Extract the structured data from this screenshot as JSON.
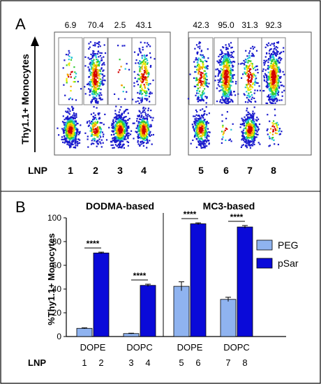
{
  "panels": {
    "a_label": "A",
    "b_label": "B"
  },
  "panel_a": {
    "y_label": "Thy1.1+ Monocytes",
    "lnp_prefix": "LNP",
    "samples": [
      {
        "lnp": "1",
        "pct": "6.9"
      },
      {
        "lnp": "2",
        "pct": "70.4"
      },
      {
        "lnp": "3",
        "pct": "2.5"
      },
      {
        "lnp": "4",
        "pct": "43.1"
      },
      {
        "lnp": "5",
        "pct": "42.3"
      },
      {
        "lnp": "6",
        "pct": "95.0"
      },
      {
        "lnp": "7",
        "pct": "31.3"
      },
      {
        "lnp": "8",
        "pct": "92.3"
      }
    ],
    "colors": {
      "high": "#d40000",
      "mid1": "#f2a000",
      "mid2": "#e8e800",
      "mid3": "#33cc33",
      "mid4": "#22c4d8",
      "low": "#1a1acc",
      "edge": "#1100aa"
    }
  },
  "chart_data": {
    "type": "bar",
    "group_titles": [
      "DODMA-based",
      "MC3-based"
    ],
    "ylabel": "%Thy1.1+ Monocytes",
    "ylim": [
      0,
      100
    ],
    "yticks": [
      0,
      20,
      40,
      60,
      80,
      100
    ],
    "categories": [
      "DOPE",
      "DOPC",
      "DOPE",
      "DOPC"
    ],
    "lnp_prefix": "LNP",
    "lnp_numbers": [
      [
        "1",
        "2"
      ],
      [
        "3",
        "4"
      ],
      [
        "5",
        "6"
      ],
      [
        "7",
        "8"
      ]
    ],
    "series": [
      {
        "name": "PEG",
        "values": [
          6.9,
          2.5,
          42.3,
          31.3
        ],
        "errors": [
          0.4,
          0.3,
          3.8,
          1.8
        ],
        "color": "#8fb3f0"
      },
      {
        "name": "pSar",
        "values": [
          70.4,
          43.1,
          95.0,
          92.3
        ],
        "errors": [
          0.7,
          1.0,
          0.8,
          1.2
        ],
        "color": "#0a0ad9"
      }
    ],
    "significance": [
      "****",
      "****",
      "****",
      "****"
    ],
    "legend_position": "right"
  }
}
